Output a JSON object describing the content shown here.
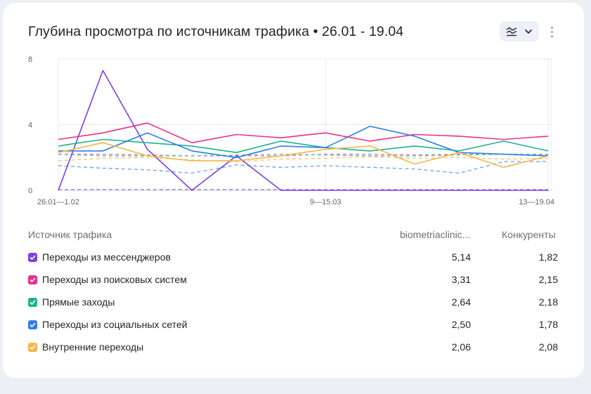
{
  "header": {
    "title": "Глубина просмотра по источникам трафика • 26.01 - 19.04",
    "chart_type_icon": "line-chart-icon",
    "dropdown_icon": "chevron-down-icon",
    "more_icon": "more-vertical-icon"
  },
  "table": {
    "col_source": "Источник трафика",
    "col_site": "biometriaclinic...",
    "col_competitors": "Конкуренты",
    "rows": [
      {
        "label": "Переходы из мессенджеров",
        "site": "5,14",
        "competitors": "1,82",
        "color": "#7b3fe4"
      },
      {
        "label": "Переходы из поисковых систем",
        "site": "3,31",
        "competitors": "2,15",
        "color": "#ec2f8a"
      },
      {
        "label": "Прямые заходы",
        "site": "2,64",
        "competitors": "2,18",
        "color": "#1bb58c"
      },
      {
        "label": "Переходы из социальных сетей",
        "site": "2,50",
        "competitors": "1,78",
        "color": "#2f7de6"
      },
      {
        "label": "Внутренние переходы",
        "site": "2,06",
        "competitors": "2,08",
        "color": "#f7b548"
      }
    ]
  },
  "chart_data": {
    "type": "line",
    "title": "Глубина просмотра по источникам трафика • 26.01 - 19.04",
    "x_tick_labels": [
      "26.01—1.02",
      "9—15.03",
      "13—19.04"
    ],
    "x_tick_index": [
      0,
      6,
      11
    ],
    "y_ticks": [
      0,
      4,
      8
    ],
    "ylim": [
      0,
      8
    ],
    "grid": true,
    "n_points": 12,
    "series": [
      {
        "name": "Переходы из мессенджеров",
        "values": [
          0,
          7.3,
          2.5,
          0,
          2.1,
          0,
          0,
          0,
          0,
          0,
          0,
          0
        ],
        "color": "#7b3fe4",
        "dashed": false
      },
      {
        "name": "Переходы из поисковых систем",
        "values": [
          3.1,
          3.5,
          4.1,
          2.9,
          3.4,
          3.2,
          3.5,
          3.0,
          3.4,
          3.3,
          3.1,
          3.3
        ],
        "color": "#ec2f8a",
        "dashed": false
      },
      {
        "name": "Прямые заходы",
        "values": [
          2.7,
          3.1,
          2.9,
          2.7,
          2.3,
          3.0,
          2.6,
          2.4,
          2.7,
          2.4,
          3.0,
          2.4
        ],
        "color": "#1bb58c",
        "dashed": false
      },
      {
        "name": "Переходы из социальных сетей",
        "values": [
          2.4,
          2.4,
          3.5,
          2.4,
          2.0,
          2.7,
          2.6,
          3.9,
          3.3,
          2.3,
          2.2,
          2.1
        ],
        "color": "#2f7de6",
        "dashed": false
      },
      {
        "name": "Внутренние переходы",
        "values": [
          2.3,
          2.9,
          2.1,
          1.8,
          1.8,
          2.1,
          2.5,
          2.7,
          1.6,
          2.3,
          1.4,
          2.1
        ],
        "color": "#f7b548",
        "dashed": false
      },
      {
        "name": "",
        "values": [
          0.05,
          0.05,
          0.05,
          0.05,
          0.05,
          0.05,
          0.05,
          0.05,
          0.05,
          0.05,
          0.05,
          0.05
        ],
        "color": "#a48ae6",
        "dashed": true
      },
      {
        "name": "",
        "values": [
          2.2,
          2.2,
          2.15,
          2.1,
          2.1,
          2.1,
          2.2,
          2.2,
          2.15,
          2.2,
          2.2,
          2.15
        ],
        "color": "#f070a8",
        "dashed": true
      },
      {
        "name": "",
        "values": [
          2.2,
          2.1,
          2.1,
          2.1,
          2.15,
          2.2,
          2.15,
          2.1,
          2.1,
          2.15,
          2.2,
          2.2
        ],
        "color": "#5ec9a9",
        "dashed": true
      },
      {
        "name": "",
        "values": [
          1.5,
          1.35,
          1.25,
          1.05,
          1.55,
          1.4,
          1.5,
          1.4,
          1.3,
          1.05,
          1.75,
          1.75
        ],
        "color": "#6fa6ee",
        "dashed": true
      },
      {
        "name": "",
        "values": [
          1.8,
          1.95,
          2.0,
          1.85,
          1.75,
          1.9,
          1.95,
          2.05,
          1.95,
          2.0,
          1.9,
          1.95
        ],
        "color": "#f8c878",
        "dashed": true
      }
    ]
  }
}
